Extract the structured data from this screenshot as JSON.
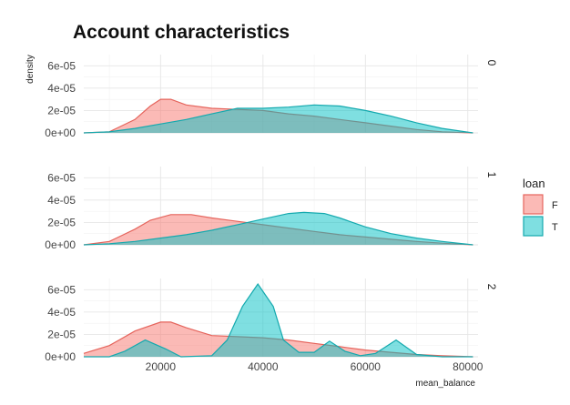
{
  "chart_data": {
    "type": "area",
    "title": "Account characteristics",
    "xlabel": "mean_balance",
    "ylabel": "density",
    "xlim": [
      5000,
      82000
    ],
    "ylim": [
      0,
      7e-05
    ],
    "x_ticks": [
      20000,
      40000,
      60000,
      80000
    ],
    "y_ticks": [
      0,
      2e-05,
      4e-05,
      6e-05
    ],
    "y_tick_labels": [
      "0e+00",
      "2e-05",
      "4e-05",
      "6e-05"
    ],
    "grid": true,
    "legend_position": "right",
    "legend": {
      "title": "loan",
      "entries": [
        {
          "label": "F",
          "fill": "#F8766D",
          "stroke": "#E5645C"
        },
        {
          "label": "T",
          "fill": "#00BFC4",
          "stroke": "#14A9AE"
        }
      ]
    },
    "facets": [
      {
        "label": "0",
        "series": [
          {
            "name": "F",
            "x": [
              5000,
              10000,
              15000,
              18000,
              20000,
              22000,
              25000,
              30000,
              35000,
              40000,
              45000,
              50000,
              55000,
              60000,
              65000,
              70000,
              75000,
              81000
            ],
            "y": [
              0,
              1e-06,
              1.2e-05,
              2.4e-05,
              3e-05,
              3e-05,
              2.5e-05,
              2.2e-05,
              2.1e-05,
              2e-05,
              1.7e-05,
              1.5e-05,
              1.2e-05,
              9e-06,
              6e-06,
              3e-06,
              1e-06,
              0
            ]
          },
          {
            "name": "T",
            "x": [
              5000,
              10000,
              15000,
              20000,
              25000,
              30000,
              35000,
              40000,
              45000,
              50000,
              55000,
              60000,
              65000,
              70000,
              75000,
              81000
            ],
            "y": [
              0,
              1e-06,
              4e-06,
              8e-06,
              1.2e-05,
              1.7e-05,
              2.2e-05,
              2.2e-05,
              2.3e-05,
              2.5e-05,
              2.4e-05,
              2e-05,
              1.5e-05,
              9e-06,
              4e-06,
              0
            ]
          }
        ]
      },
      {
        "label": "1",
        "series": [
          {
            "name": "F",
            "x": [
              5000,
              10000,
              15000,
              18000,
              22000,
              26000,
              30000,
              35000,
              40000,
              45000,
              50000,
              55000,
              60000,
              65000,
              70000,
              75000,
              81000
            ],
            "y": [
              0,
              3e-06,
              1.4e-05,
              2.2e-05,
              2.7e-05,
              2.7e-05,
              2.4e-05,
              2.1e-05,
              1.8e-05,
              1.5e-05,
              1.2e-05,
              9e-06,
              7e-06,
              5e-06,
              3e-06,
              1.5e-06,
              0
            ]
          },
          {
            "name": "T",
            "x": [
              5000,
              10000,
              15000,
              20000,
              25000,
              30000,
              35000,
              40000,
              45000,
              48000,
              52000,
              55000,
              60000,
              65000,
              70000,
              75000,
              81000
            ],
            "y": [
              0,
              1e-06,
              3e-06,
              6e-06,
              9e-06,
              1.3e-05,
              1.8e-05,
              2.3e-05,
              2.8e-05,
              2.9e-05,
              2.8e-05,
              2.4e-05,
              1.6e-05,
              1e-05,
              6e-06,
              3e-06,
              0
            ]
          }
        ]
      },
      {
        "label": "2",
        "series": [
          {
            "name": "F",
            "x": [
              5000,
              10000,
              15000,
              20000,
              22000,
              25000,
              30000,
              35000,
              40000,
              45000,
              50000,
              55000,
              60000,
              65000,
              70000,
              75000,
              81000
            ],
            "y": [
              3e-06,
              1e-05,
              2.3e-05,
              3.1e-05,
              3.1e-05,
              2.6e-05,
              1.9e-05,
              1.8e-05,
              1.7e-05,
              1.5e-05,
              1.2e-05,
              9e-06,
              6e-06,
              4e-06,
              2e-06,
              1e-06,
              0
            ]
          },
          {
            "name": "T",
            "x": [
              5000,
              10000,
              13000,
              17000,
              21000,
              24000,
              30000,
              33000,
              36000,
              39000,
              42000,
              44000,
              47000,
              50000,
              53000,
              56000,
              59000,
              62000,
              66000,
              70000,
              75000,
              81000
            ],
            "y": [
              0,
              0,
              5e-06,
              1.5e-05,
              7e-06,
              0,
              1e-06,
              1.5e-05,
              4.5e-05,
              6.5e-05,
              4.5e-05,
              1.5e-05,
              4e-06,
              4e-06,
              1.4e-05,
              5e-06,
              1e-06,
              3e-06,
              1.5e-05,
              2e-06,
              0,
              0
            ]
          }
        ]
      }
    ]
  }
}
